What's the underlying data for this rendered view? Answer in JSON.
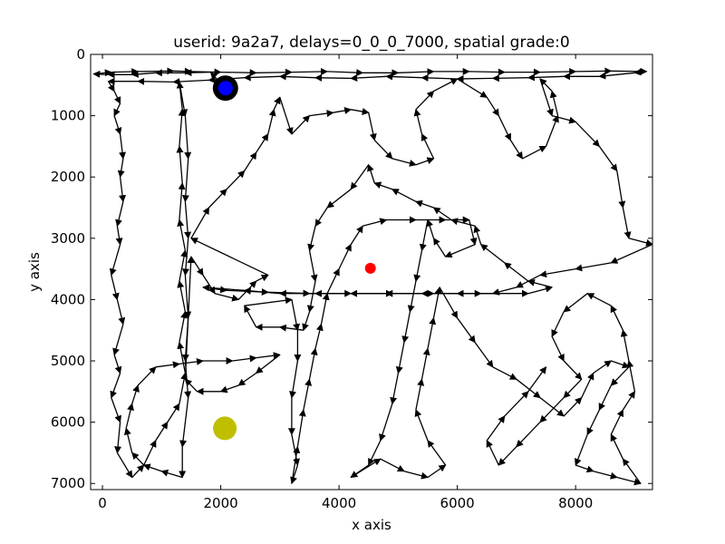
{
  "chart_data": {
    "type": "line",
    "title": "userid: 9a2a7, delays=0_0_0_7000, spatial grade:0",
    "xlabel": "x axis",
    "ylabel": "y axis",
    "xlim": [
      -200,
      9300
    ],
    "ylim": [
      7100,
      0
    ],
    "y_inverted": true,
    "x_ticks": [
      0,
      2000,
      4000,
      6000,
      8000
    ],
    "y_ticks": [
      0,
      1000,
      2000,
      3000,
      4000,
      5000,
      6000,
      7000
    ],
    "x_tick_labels": [
      "0",
      "2000",
      "4000",
      "6000",
      "8000"
    ],
    "y_tick_labels": [
      "0",
      "1000",
      "2000",
      "3000",
      "4000",
      "5000",
      "6000",
      "7000"
    ],
    "grid": false,
    "line_color": "#000000",
    "series": [
      {
        "points": [
          [
            2080,
            560
          ],
          [
            1830,
            290
          ],
          [
            1400,
            300
          ],
          [
            900,
            300
          ],
          [
            500,
            330
          ],
          [
            100,
            330
          ],
          [
            -150,
            320
          ],
          [
            150,
            290
          ],
          [
            600,
            280
          ],
          [
            1200,
            270
          ],
          [
            1500,
            280
          ],
          [
            2000,
            290
          ],
          [
            2600,
            300
          ],
          [
            3200,
            290
          ],
          [
            3800,
            280
          ],
          [
            4400,
            300
          ],
          [
            5000,
            300
          ],
          [
            5600,
            280
          ],
          [
            6200,
            280
          ],
          [
            6800,
            290
          ],
          [
            7400,
            290
          ],
          [
            8000,
            280
          ],
          [
            8600,
            270
          ],
          [
            9200,
            280
          ],
          [
            9000,
            300
          ],
          [
            8400,
            360
          ],
          [
            7800,
            360
          ],
          [
            7200,
            380
          ],
          [
            6600,
            390
          ],
          [
            6000,
            400
          ],
          [
            5400,
            380
          ],
          [
            4800,
            360
          ],
          [
            4200,
            390
          ],
          [
            3600,
            380
          ],
          [
            3000,
            360
          ],
          [
            2400,
            380
          ],
          [
            1800,
            420
          ],
          [
            1200,
            450
          ],
          [
            600,
            440
          ],
          [
            100,
            440
          ],
          [
            200,
            600
          ],
          [
            300,
            800
          ],
          [
            200,
            1000
          ],
          [
            300,
            1300
          ],
          [
            350,
            1700
          ],
          [
            300,
            2000
          ],
          [
            350,
            2400
          ],
          [
            250,
            2800
          ],
          [
            300,
            3100
          ],
          [
            150,
            3600
          ],
          [
            250,
            4000
          ],
          [
            350,
            4400
          ],
          [
            200,
            4900
          ],
          [
            300,
            5200
          ],
          [
            150,
            5600
          ],
          [
            300,
            6000
          ],
          [
            250,
            6500
          ],
          [
            500,
            6900
          ],
          [
            700,
            6700
          ],
          [
            900,
            6300
          ],
          [
            1100,
            6000
          ],
          [
            1300,
            5700
          ],
          [
            1400,
            5200
          ],
          [
            1300,
            4700
          ],
          [
            1400,
            4200
          ],
          [
            1300,
            3700
          ],
          [
            1400,
            3200
          ],
          [
            1300,
            2700
          ],
          [
            1350,
            2100
          ],
          [
            1300,
            1500
          ],
          [
            1350,
            900
          ],
          [
            1300,
            450
          ],
          [
            1400,
            1000
          ],
          [
            1450,
            1700
          ],
          [
            1400,
            2400
          ],
          [
            1450,
            3000
          ],
          [
            1400,
            3600
          ],
          [
            1450,
            4300
          ],
          [
            1400,
            5000
          ],
          [
            1450,
            5600
          ],
          [
            1350,
            6400
          ],
          [
            1350,
            6900
          ],
          [
            1000,
            6800
          ],
          [
            700,
            6700
          ],
          [
            500,
            6500
          ],
          [
            400,
            6100
          ],
          [
            500,
            5700
          ],
          [
            600,
            5400
          ],
          [
            900,
            5100
          ],
          [
            1300,
            5050
          ],
          [
            1700,
            5000
          ],
          [
            2200,
            5000
          ],
          [
            2600,
            4950
          ],
          [
            3000,
            4900
          ],
          [
            2600,
            5200
          ],
          [
            2300,
            5400
          ],
          [
            2000,
            5500
          ],
          [
            1600,
            5500
          ],
          [
            1400,
            5300
          ],
          [
            1500,
            3300
          ],
          [
            1700,
            3600
          ],
          [
            1900,
            3900
          ],
          [
            2300,
            4000
          ],
          [
            2600,
            3700
          ],
          [
            2800,
            3600
          ],
          [
            1500,
            3000
          ],
          [
            1800,
            2500
          ],
          [
            2100,
            2200
          ],
          [
            2400,
            1900
          ],
          [
            2600,
            1600
          ],
          [
            2800,
            1300
          ],
          [
            2900,
            900
          ],
          [
            3000,
            700
          ],
          [
            3200,
            1300
          ],
          [
            3500,
            1000
          ],
          [
            3900,
            950
          ],
          [
            4200,
            900
          ],
          [
            4500,
            950
          ],
          [
            4600,
            1400
          ],
          [
            4900,
            1700
          ],
          [
            5300,
            1800
          ],
          [
            5600,
            1700
          ],
          [
            5400,
            1300
          ],
          [
            5300,
            900
          ],
          [
            5600,
            600
          ],
          [
            6000,
            400
          ],
          [
            6500,
            700
          ],
          [
            6700,
            1000
          ],
          [
            6900,
            1400
          ],
          [
            7100,
            1700
          ],
          [
            7500,
            1500
          ],
          [
            7700,
            1000
          ],
          [
            7600,
            600
          ],
          [
            7400,
            400
          ],
          [
            7600,
            1000
          ],
          [
            8000,
            1100
          ],
          [
            8400,
            1500
          ],
          [
            8700,
            1900
          ],
          [
            8800,
            2500
          ],
          [
            8900,
            3000
          ],
          [
            9300,
            3100
          ],
          [
            8600,
            3400
          ],
          [
            8000,
            3500
          ],
          [
            7400,
            3600
          ],
          [
            7000,
            3800
          ],
          [
            6600,
            3900
          ],
          [
            6000,
            3900
          ],
          [
            5400,
            3900
          ],
          [
            4800,
            3900
          ],
          [
            4200,
            3900
          ],
          [
            3600,
            3900
          ],
          [
            3000,
            3900
          ],
          [
            2400,
            3850
          ],
          [
            1700,
            3800
          ],
          [
            2100,
            3850
          ],
          [
            2800,
            3880
          ],
          [
            3500,
            3900
          ],
          [
            4200,
            3900
          ],
          [
            4900,
            3900
          ],
          [
            5600,
            3900
          ],
          [
            6400,
            3900
          ],
          [
            7200,
            3900
          ],
          [
            7600,
            3800
          ],
          [
            7200,
            3700
          ],
          [
            6800,
            3400
          ],
          [
            6400,
            3100
          ],
          [
            6300,
            2800
          ],
          [
            5900,
            2700
          ],
          [
            5600,
            2500
          ],
          [
            5300,
            2400
          ],
          [
            4900,
            2200
          ],
          [
            4600,
            2100
          ],
          [
            4500,
            1800
          ],
          [
            4200,
            2200
          ],
          [
            3800,
            2500
          ],
          [
            3600,
            2800
          ],
          [
            3500,
            3200
          ],
          [
            3600,
            3700
          ],
          [
            3500,
            4200
          ],
          [
            3400,
            4500
          ],
          [
            3000,
            4450
          ],
          [
            2600,
            4450
          ],
          [
            2400,
            4100
          ],
          [
            3200,
            4000
          ],
          [
            3300,
            4500
          ],
          [
            3300,
            5000
          ],
          [
            3200,
            5600
          ],
          [
            3200,
            6200
          ],
          [
            3300,
            6700
          ],
          [
            3200,
            7000
          ],
          [
            3300,
            6400
          ],
          [
            3400,
            5800
          ],
          [
            3500,
            5300
          ],
          [
            3600,
            4800
          ],
          [
            3700,
            4400
          ],
          [
            3800,
            3900
          ],
          [
            4000,
            3500
          ],
          [
            4200,
            3100
          ],
          [
            4400,
            2800
          ],
          [
            4800,
            2700
          ],
          [
            5300,
            2700
          ],
          [
            5800,
            2700
          ],
          [
            6200,
            2700
          ],
          [
            6300,
            3100
          ],
          [
            5800,
            3300
          ],
          [
            5600,
            3000
          ],
          [
            5500,
            2700
          ],
          [
            5400,
            3200
          ],
          [
            5300,
            3700
          ],
          [
            5200,
            4200
          ],
          [
            5100,
            4700
          ],
          [
            5000,
            5200
          ],
          [
            4900,
            5700
          ],
          [
            4700,
            6300
          ],
          [
            4500,
            6700
          ],
          [
            4200,
            6900
          ],
          [
            4700,
            6600
          ],
          [
            5100,
            6800
          ],
          [
            5500,
            6900
          ],
          [
            5800,
            6700
          ],
          [
            5500,
            6300
          ],
          [
            5300,
            5800
          ],
          [
            5400,
            5300
          ],
          [
            5500,
            4800
          ],
          [
            5600,
            4300
          ],
          [
            5700,
            3800
          ],
          [
            6000,
            4300
          ],
          [
            6300,
            4700
          ],
          [
            6600,
            5100
          ],
          [
            7000,
            5300
          ],
          [
            7400,
            5600
          ],
          [
            7800,
            5900
          ],
          [
            8100,
            5600
          ],
          [
            8300,
            5200
          ],
          [
            8600,
            5000
          ],
          [
            8900,
            5100
          ],
          [
            8600,
            5400
          ],
          [
            8400,
            5800
          ],
          [
            8200,
            6200
          ],
          [
            8000,
            6700
          ],
          [
            8300,
            6800
          ],
          [
            8700,
            6900
          ],
          [
            9100,
            7000
          ],
          [
            8800,
            6600
          ],
          [
            8600,
            6200
          ],
          [
            8800,
            5800
          ],
          [
            9000,
            5500
          ],
          [
            8900,
            5000
          ],
          [
            8800,
            4500
          ],
          [
            8600,
            4100
          ],
          [
            8200,
            3900
          ],
          [
            7800,
            4200
          ],
          [
            7600,
            4600
          ],
          [
            7800,
            5000
          ],
          [
            8100,
            5300
          ],
          [
            7800,
            5600
          ],
          [
            7400,
            6000
          ],
          [
            7000,
            6400
          ],
          [
            6700,
            6700
          ],
          [
            6500,
            6300
          ],
          [
            6800,
            5900
          ],
          [
            7200,
            5500
          ],
          [
            7500,
            5100
          ]
        ]
      }
    ],
    "markers": [
      {
        "x": 2080,
        "y": 550,
        "color": "#000000"
      },
      {
        "x": 2080,
        "y": 550,
        "color": "#0000ff"
      },
      {
        "x": 4530,
        "y": 3490,
        "color": "#ff0000"
      },
      {
        "x": 2070,
        "y": 6100,
        "color": "#bfbf00"
      }
    ]
  }
}
